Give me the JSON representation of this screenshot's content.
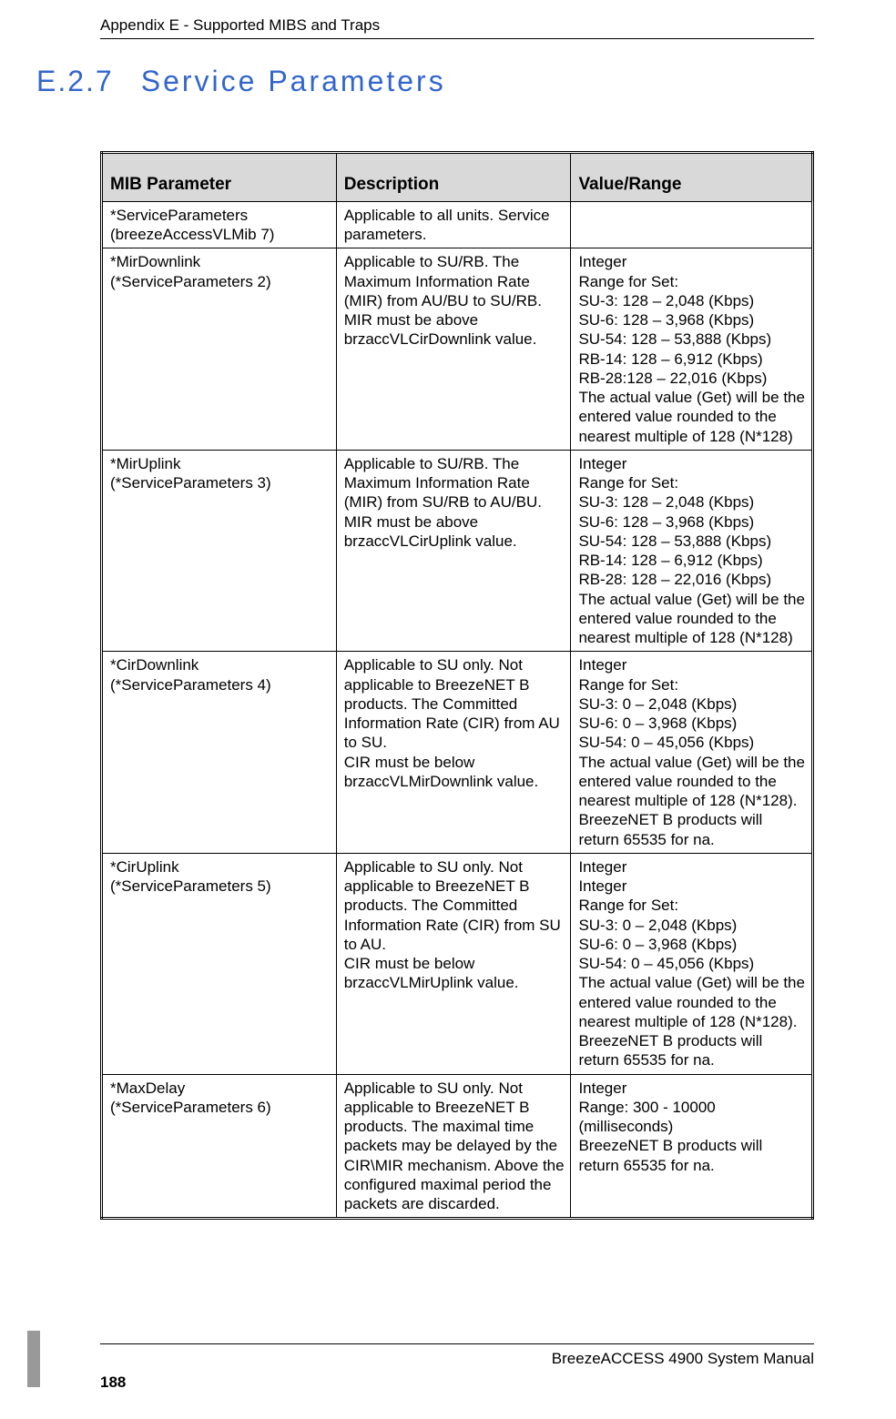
{
  "header": {
    "text": "Appendix E - Supported MIBS and Traps"
  },
  "section": {
    "number": "E.2.7",
    "title": "Service Parameters"
  },
  "table": {
    "columns": [
      "MIB Parameter",
      "Description",
      "Value/Range"
    ],
    "header_bg": "#d9d9d9",
    "border_color": "#000000",
    "rows": [
      {
        "param": "*ServiceParameters\n(breezeAccessVLMib 7)",
        "desc": "Applicable to all units. Service parameters.",
        "range": ""
      },
      {
        "param": "*MirDownlink\n(*ServiceParameters 2)",
        "desc": "Applicable to SU/RB. The Maximum Information Rate (MIR) from AU/BU to SU/RB. MIR must be above brzaccVLCirDownlink value.",
        "range": "Integer\nRange for Set:\nSU-3: 128 – 2,048 (Kbps)\nSU-6: 128 – 3,968 (Kbps)\nSU-54: 128 – 53,888 (Kbps)\nRB-14: 128 – 6,912 (Kbps)\nRB-28:128 – 22,016 (Kbps)\nThe actual value (Get) will be the entered value rounded to the nearest multiple of 128 (N*128)"
      },
      {
        "param": "*MirUplink\n(*ServiceParameters 3)",
        "desc": "Applicable to SU/RB. The Maximum Information Rate (MIR) from SU/RB to AU/BU. MIR must be above brzaccVLCirUplink value.",
        "range": "Integer\nRange for Set:\nSU-3: 128 – 2,048 (Kbps)\nSU-6: 128 – 3,968 (Kbps)\nSU-54: 128 – 53,888 (Kbps)\nRB-14: 128 – 6,912 (Kbps)\nRB-28: 128 – 22,016 (Kbps)\nThe actual value (Get) will be the entered value rounded to the nearest multiple of 128 (N*128)"
      },
      {
        "param": "*CirDownlink\n(*ServiceParameters 4)",
        "desc": "Applicable to SU only. Not applicable to BreezeNET B products. The Committed Information Rate (CIR) from AU to SU.\nCIR must be below brzaccVLMirDownlink value.",
        "range": "Integer\nRange for Set:\nSU-3: 0 – 2,048 (Kbps)\nSU-6: 0 – 3,968 (Kbps)\nSU-54: 0 – 45,056 (Kbps)\nThe actual value (Get) will be the entered value rounded to the nearest multiple of 128 (N*128).\nBreezeNET B products will return 65535 for na."
      },
      {
        "param": "*CirUplink\n(*ServiceParameters 5)",
        "desc": "Applicable to SU only. Not applicable to BreezeNET B products. The Committed Information Rate (CIR) from SU to AU.\nCIR must be below brzaccVLMirUplink value.",
        "range": "Integer\nInteger\nRange for Set:\nSU-3: 0 – 2,048 (Kbps)\nSU-6: 0 – 3,968 (Kbps)\nSU-54: 0 – 45,056 (Kbps)\nThe actual value (Get) will be the entered value rounded to the nearest multiple of 128 (N*128).\nBreezeNET B products will return 65535 for na."
      },
      {
        "param": "*MaxDelay\n(*ServiceParameters 6)",
        "desc": "Applicable to SU only. Not applicable to BreezeNET B products. The maximal time packets may be delayed by the CIR\\MIR mechanism. Above the configured maximal period the packets are discarded.",
        "range": "Integer\nRange: 300 - 10000 (milliseconds)\nBreezeNET B products will return 65535 for na."
      }
    ]
  },
  "footer": {
    "manual": "BreezeACCESS 4900 System Manual",
    "page": "188"
  },
  "colors": {
    "heading": "#3366cc",
    "sidebar": "#999999",
    "background": "#ffffff",
    "text": "#000000"
  }
}
